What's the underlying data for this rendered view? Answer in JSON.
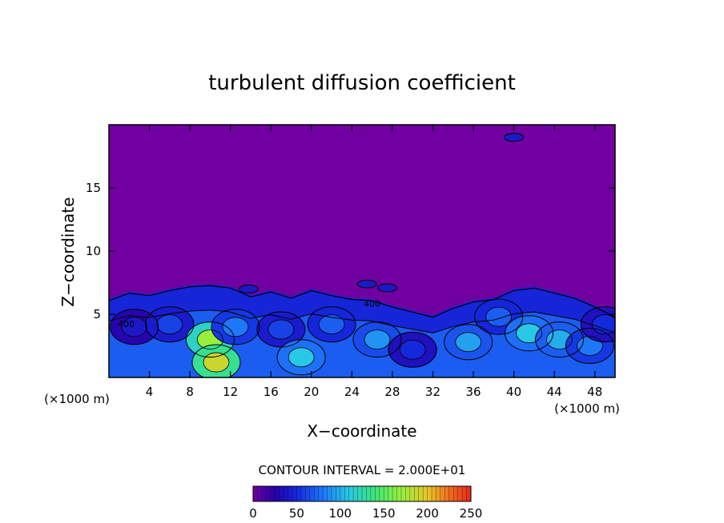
{
  "chart_data": {
    "type": "heatmap",
    "title": "turbulent diffusion coefficient",
    "xlabel": "X−coordinate",
    "ylabel": "Z−coordinate",
    "x_unit": "(×1000 m)",
    "y_unit": "(×1000 m)",
    "xlim": [
      0,
      50
    ],
    "ylim": [
      0,
      20
    ],
    "x_ticks": [
      4,
      8,
      12,
      16,
      20,
      24,
      28,
      32,
      36,
      40,
      44,
      48
    ],
    "y_ticks": [
      5,
      10,
      15
    ],
    "contour_interval_text": "CONTOUR INTERVAL = 2.000E+01",
    "colorbar": {
      "range": [
        0,
        250
      ],
      "ticks": [
        0,
        50,
        100,
        150,
        200,
        250
      ]
    },
    "contour_labels": [
      {
        "text": "400",
        "x": 1.7,
        "z": 4.0
      },
      {
        "text": "400",
        "x": 26,
        "z": 5.6
      }
    ],
    "background_level": 0,
    "cloud_top_profile": [
      {
        "x": 0,
        "z": 6.2
      },
      {
        "x": 2,
        "z": 6.8
      },
      {
        "x": 4,
        "z": 6.6
      },
      {
        "x": 6,
        "z": 7.0
      },
      {
        "x": 8,
        "z": 7.3
      },
      {
        "x": 10,
        "z": 7.4
      },
      {
        "x": 12,
        "z": 7.2
      },
      {
        "x": 14,
        "z": 6.5
      },
      {
        "x": 16,
        "z": 6.9
      },
      {
        "x": 18,
        "z": 6.4
      },
      {
        "x": 20,
        "z": 7.0
      },
      {
        "x": 22,
        "z": 6.6
      },
      {
        "x": 24,
        "z": 6.3
      },
      {
        "x": 26,
        "z": 6.2
      },
      {
        "x": 28,
        "z": 5.7
      },
      {
        "x": 30,
        "z": 5.3
      },
      {
        "x": 32,
        "z": 4.9
      },
      {
        "x": 34,
        "z": 5.6
      },
      {
        "x": 36,
        "z": 6.1
      },
      {
        "x": 38,
        "z": 6.3
      },
      {
        "x": 40,
        "z": 7.0
      },
      {
        "x": 42,
        "z": 7.2
      },
      {
        "x": 44,
        "z": 6.8
      },
      {
        "x": 46,
        "z": 6.4
      },
      {
        "x": 48,
        "z": 5.7
      },
      {
        "x": 50,
        "z": 4.9
      }
    ],
    "eddies": [
      {
        "x": 2.5,
        "z": 4.0,
        "level": 40
      },
      {
        "x": 6.0,
        "z": 4.2,
        "level": 60
      },
      {
        "x": 10.0,
        "z": 3.0,
        "level": 170
      },
      {
        "x": 10.6,
        "z": 1.2,
        "level": 190
      },
      {
        "x": 12.5,
        "z": 4.0,
        "level": 80
      },
      {
        "x": 17.0,
        "z": 3.8,
        "level": 60
      },
      {
        "x": 19.0,
        "z": 1.6,
        "level": 110
      },
      {
        "x": 22.0,
        "z": 4.2,
        "level": 70
      },
      {
        "x": 26.5,
        "z": 3.0,
        "level": 90
      },
      {
        "x": 30.0,
        "z": 2.2,
        "level": 50
      },
      {
        "x": 35.5,
        "z": 2.8,
        "level": 95
      },
      {
        "x": 38.5,
        "z": 4.8,
        "level": 70
      },
      {
        "x": 41.5,
        "z": 3.5,
        "level": 110
      },
      {
        "x": 44.5,
        "z": 3.0,
        "level": 100
      },
      {
        "x": 47.5,
        "z": 2.5,
        "level": 80
      },
      {
        "x": 49.0,
        "z": 4.2,
        "level": 50
      }
    ],
    "patches_aloft": [
      {
        "x": 25.5,
        "z": 7.4,
        "level": 40
      },
      {
        "x": 27.5,
        "z": 7.1,
        "level": 40
      },
      {
        "x": 40.0,
        "z": 19.0,
        "level": 40
      },
      {
        "x": 13.8,
        "z": 7.0,
        "level": 40
      }
    ]
  }
}
